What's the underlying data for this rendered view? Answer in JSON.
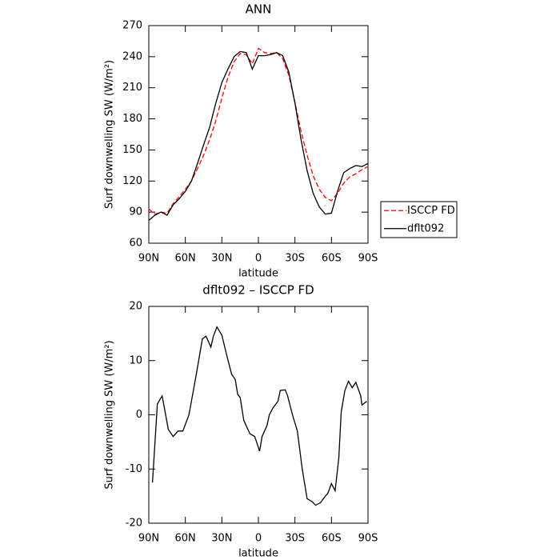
{
  "chart_data": [
    {
      "type": "line",
      "title": "ANN",
      "x_label": "latitude",
      "y_label": "Surf downwelling SW (W/m²)",
      "x": [
        90,
        85,
        80,
        75,
        70,
        65,
        60,
        55,
        50,
        45,
        40,
        35,
        30,
        25,
        20,
        15,
        10,
        5,
        0,
        -5,
        -10,
        -15,
        -20,
        -25,
        -30,
        -35,
        -40,
        -45,
        -50,
        -55,
        -60,
        -65,
        -70,
        -75,
        -80,
        -85,
        -90
      ],
      "series": [
        {
          "name": "ISCCP FD",
          "color": "#ff0000",
          "style": "dashed",
          "values": [
            93,
            88,
            90,
            89,
            98,
            105,
            112,
            120,
            132,
            145,
            160,
            178,
            200,
            220,
            235,
            243,
            242,
            233,
            248,
            244,
            243,
            244,
            238,
            222,
            196,
            168,
            145,
            125,
            112,
            104,
            101,
            108,
            118,
            124,
            127,
            131,
            134
          ]
        },
        {
          "name": "dflt092",
          "color": "#000000",
          "style": "solid",
          "values": [
            82,
            87,
            90,
            87,
            97,
            103,
            110,
            120,
            137,
            155,
            172,
            195,
            215,
            228,
            240,
            245,
            244,
            228,
            241,
            241,
            242,
            244,
            241,
            225,
            195,
            160,
            130,
            108,
            95,
            88,
            89,
            110,
            128,
            132,
            135,
            134,
            137
          ]
        }
      ],
      "xlim": [
        90,
        -90
      ],
      "xticks": [
        {
          "value": 90,
          "label": "90N"
        },
        {
          "value": 60,
          "label": "60N"
        },
        {
          "value": 30,
          "label": "30N"
        },
        0,
        {
          "value": -30,
          "label": "30S"
        },
        {
          "value": -60,
          "label": "60S"
        },
        {
          "value": -90,
          "label": "90S"
        }
      ],
      "ylim": [
        60,
        270
      ],
      "yticks": [
        60,
        90,
        120,
        150,
        180,
        210,
        240,
        270
      ],
      "legend": "right"
    },
    {
      "type": "line",
      "title": "dflt092 – ISCCP FD",
      "x_label": "latitude",
      "y_label": "Surf downwelling SW (W/m²)",
      "x": [
        87,
        83,
        79,
        74,
        70,
        66,
        62,
        57,
        51,
        46,
        43,
        39,
        37,
        34,
        30,
        26,
        22,
        19,
        17,
        15,
        12,
        7,
        3,
        -1,
        -3,
        -7,
        -9,
        -12,
        -16,
        -18,
        -22,
        -24,
        -28,
        -32,
        -36,
        -40,
        -44,
        -47,
        -51,
        -55,
        -57,
        -60,
        -63,
        -66,
        -68,
        -71,
        -74,
        -77,
        -80,
        -84,
        -85,
        -89
      ],
      "series": [
        {
          "name": "dflt092 – ISCCP FD",
          "color": "#000000",
          "style": "solid",
          "values": [
            -12.5,
            2,
            3.5,
            -2.7,
            -4,
            -3,
            -3,
            0,
            7.5,
            14,
            14.5,
            12.5,
            14.5,
            16.2,
            14.7,
            11,
            7.5,
            6.5,
            3.8,
            3.2,
            -1,
            -3.5,
            -4,
            -6.7,
            -4,
            -2,
            0,
            1.3,
            2.5,
            4.5,
            4.6,
            3.5,
            0,
            -3,
            -10,
            -15.5,
            -16,
            -16.7,
            -16.2,
            -15,
            -14.5,
            -12.7,
            -14,
            -8,
            0.5,
            4.5,
            6.2,
            5,
            6,
            3.5,
            1.8,
            2.5
          ]
        }
      ],
      "xlim": [
        90,
        -90
      ],
      "xticks": [
        {
          "value": 90,
          "label": "90N"
        },
        {
          "value": 60,
          "label": "60N"
        },
        {
          "value": 30,
          "label": "30N"
        },
        0,
        {
          "value": -30,
          "label": "30S"
        },
        {
          "value": -60,
          "label": "60S"
        },
        {
          "value": -90,
          "label": "90S"
        }
      ],
      "ylim": [
        -20,
        20
      ],
      "yticks": [
        -20,
        -10,
        0,
        10,
        20
      ]
    }
  ]
}
